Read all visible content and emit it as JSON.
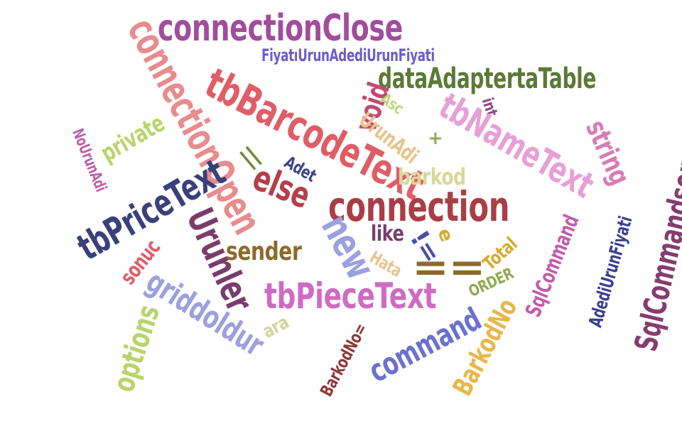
{
  "words": [
    {
      "id": "connectionClose",
      "text": "connectionClose",
      "color": "#a14d9c"
    },
    {
      "id": "connectionOpen",
      "text": "connectionOpen",
      "color": "#e88c8e"
    },
    {
      "id": "FiyatiUrunAdediUrunFiyati",
      "text": "FiyatıUrunAdediUrunFiyati",
      "color": "#6a5ecb"
    },
    {
      "id": "tbBarcodeText",
      "text": "tbBarcodeText",
      "color": "#e05d67"
    },
    {
      "id": "dataAdaptertaTable",
      "text": "dataAdaptertaTable",
      "color": "#5c7a37"
    },
    {
      "id": "void",
      "text": "void",
      "color": "#c24a74"
    },
    {
      "id": "Asc",
      "text": "Asc",
      "color": "#b8da7c"
    },
    {
      "id": "int",
      "text": "int",
      "color": "#8c4a86"
    },
    {
      "id": "tbNameText",
      "text": "tbNameText",
      "color": "#e7a0d6"
    },
    {
      "id": "string",
      "text": "string",
      "color": "#d77cb6"
    },
    {
      "id": "UrunAdi",
      "text": "UrunAdi",
      "color": "#e7c48c"
    },
    {
      "id": "plus",
      "text": "+",
      "color": "#8eab52"
    },
    {
      "id": "NoUrunAdi",
      "text": "NoUrunAdi",
      "color": "#c25cad"
    },
    {
      "id": "private",
      "text": "private",
      "color": "#b8d46b"
    },
    {
      "id": "barkod",
      "text": "barkod",
      "color": "#d7d89a"
    },
    {
      "id": "SqlCommandsorgu",
      "text": "SqlCommandsorgu",
      "color": "#853d6f"
    },
    {
      "id": "pipes",
      "text": "||",
      "color": "#6b8e3b"
    },
    {
      "id": "Adet",
      "text": "Adet",
      "color": "#3e4389"
    },
    {
      "id": "else",
      "text": "else",
      "color": "#b34049"
    },
    {
      "id": "tbPriceText",
      "text": "tbPriceText",
      "color": "#39407a"
    },
    {
      "id": "connection",
      "text": "connection",
      "color": "#a93e47"
    },
    {
      "id": "Urunler",
      "text": "Urunler",
      "color": "#7a3d6b"
    },
    {
      "id": "new",
      "text": "new",
      "color": "#9ba1dd"
    },
    {
      "id": "like",
      "text": "like",
      "color": "#7a3d6b"
    },
    {
      "id": "e",
      "text": "e",
      "color": "#d6aa2a"
    },
    {
      "id": "SqlCommand",
      "text": "SqlCommand",
      "color": "#c25cad"
    },
    {
      "id": "AdediUrunFiyati",
      "text": "AdediUrunFiyati",
      "color": "#3b3f8f"
    },
    {
      "id": "sender",
      "text": "sender",
      "color": "#8c6a2a"
    },
    {
      "id": "notequal",
      "text": "!=",
      "color": "#4a50a5"
    },
    {
      "id": "Hata",
      "text": "Hata",
      "color": "#e7c48c"
    },
    {
      "id": "equals",
      "text": "==",
      "color": "#8c6a2a"
    },
    {
      "id": "Total",
      "text": "Total",
      "color": "#d6aa2a"
    },
    {
      "id": "sonuc",
      "text": "sonuc",
      "color": "#e05d67"
    },
    {
      "id": "griddoldur",
      "text": "griddoldur",
      "color": "#9ba1dd"
    },
    {
      "id": "tbPieceText",
      "text": "tbPieceText",
      "color": "#cf6bc2"
    },
    {
      "id": "ORDER",
      "text": "ORDER",
      "color": "#8eab52"
    },
    {
      "id": "ara",
      "text": "ara",
      "color": "#cfd59c"
    },
    {
      "id": "options",
      "text": "options",
      "color": "#b8d46b"
    },
    {
      "id": "command",
      "text": "command",
      "color": "#6a71cf"
    },
    {
      "id": "BarkodNo",
      "text": "BarkodNo",
      "color": "#e7b84a"
    },
    {
      "id": "BarkodNoEq",
      "text": "BarkodNo=",
      "color": "#8e3a3a"
    }
  ]
}
